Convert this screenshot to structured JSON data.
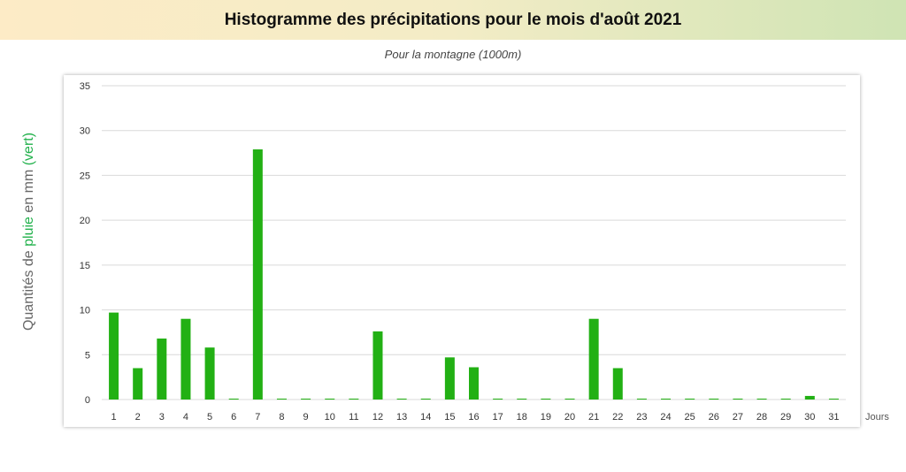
{
  "header": {
    "title": "Histogramme des précipitations pour le mois d'août 2021",
    "subtitle": "Pour la montagne (1000m)"
  },
  "axes": {
    "y_title_pre": "Quantités de ",
    "y_title_green": "pluie",
    "y_title_mid": " en mm ",
    "y_title_paren": "(vert)",
    "x_title": "Jours"
  },
  "colors": {
    "bar": "#22b014",
    "accent_text": "#22b14c",
    "grid": "#d9d9d9"
  },
  "chart_data": {
    "type": "bar",
    "title": "Histogramme des précipitations pour le mois d'août 2021",
    "subtitle": "Pour la montagne (1000m)",
    "xlabel": "Jours",
    "ylabel": "Quantités de pluie en mm (vert)",
    "ylim": [
      0,
      35
    ],
    "yticks": [
      0,
      5,
      10,
      15,
      20,
      25,
      30,
      35
    ],
    "grid": true,
    "categories": [
      "1",
      "2",
      "3",
      "4",
      "5",
      "6",
      "7",
      "8",
      "9",
      "10",
      "11",
      "12",
      "13",
      "14",
      "15",
      "16",
      "17",
      "18",
      "19",
      "20",
      "21",
      "22",
      "23",
      "24",
      "25",
      "26",
      "27",
      "28",
      "29",
      "30",
      "31"
    ],
    "series": [
      {
        "values": [
          9.7,
          3.5,
          6.8,
          9.0,
          5.8,
          0.1,
          27.9,
          0.1,
          0.1,
          0.1,
          0.1,
          7.6,
          0.1,
          0.1,
          4.7,
          3.6,
          0.1,
          0.1,
          0.1,
          0.1,
          9.0,
          3.5,
          0.1,
          0.1,
          0.1,
          0.1,
          0.1,
          0.1,
          0.1,
          0.4,
          0.1
        ]
      }
    ]
  }
}
